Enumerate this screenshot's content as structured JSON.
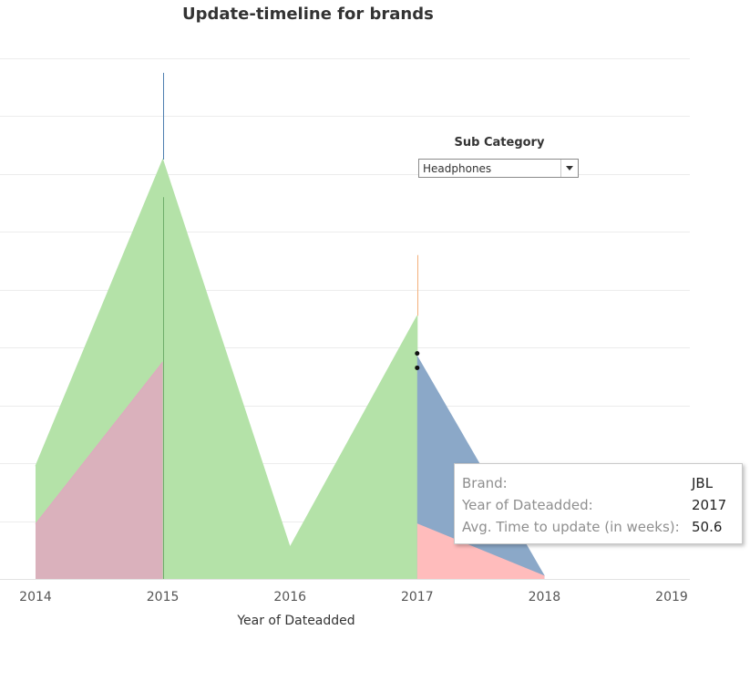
{
  "title": "Update-timeline for brands",
  "filter": {
    "label": "Sub Category",
    "value": "Headphones"
  },
  "tooltip": {
    "rows": [
      {
        "key": "Brand:",
        "value": "JBL"
      },
      {
        "key": "Year of Dateadded:",
        "value": "2017"
      },
      {
        "key": "Avg. Time to update (in weeks):",
        "value": "50.6"
      }
    ]
  },
  "chart_data": {
    "type": "area",
    "title": "Update-timeline for brands",
    "xlabel": "Year of Dateadded",
    "ylabel": "",
    "xlim": [
      2014,
      2019
    ],
    "ylim": [
      0,
      9.3
    ],
    "grid": true,
    "categories": [
      "2014",
      "2015",
      "2016",
      "2017",
      "2018",
      "2019"
    ],
    "series": [
      {
        "color": "#b4e2a8",
        "opacity": 1,
        "points": [
          [
            2014,
            1.95
          ],
          [
            2015,
            7.25
          ],
          [
            2016,
            0.55
          ],
          [
            2017,
            4.55
          ],
          [
            2017,
            0
          ]
        ]
      },
      {
        "color": "#8ba8c8",
        "opacity": 1,
        "points": [
          [
            2017,
            3.85
          ],
          [
            2018,
            0.05
          ]
        ]
      },
      {
        "color": "#ffbcbc",
        "opacity": 1,
        "points": [
          [
            2017,
            0.95
          ],
          [
            2018,
            0.05
          ]
        ]
      },
      {
        "color": "#e0a8c0",
        "opacity": 0.85,
        "points": [
          [
            2014,
            0.95
          ],
          [
            2015,
            3.75
          ]
        ]
      }
    ],
    "rules": [
      {
        "x": 2015,
        "from": 7.25,
        "to": 8.75,
        "color": "#4f7fb0"
      },
      {
        "x": 2015,
        "from": 0,
        "to": 6.6,
        "color": "#6fae6a"
      },
      {
        "x": 2017,
        "from": 4.55,
        "to": 5.6,
        "color": "#f4b07a"
      }
    ],
    "dots": [
      {
        "x": 2017,
        "y": 3.9
      },
      {
        "x": 2017,
        "y": 3.65
      }
    ]
  }
}
